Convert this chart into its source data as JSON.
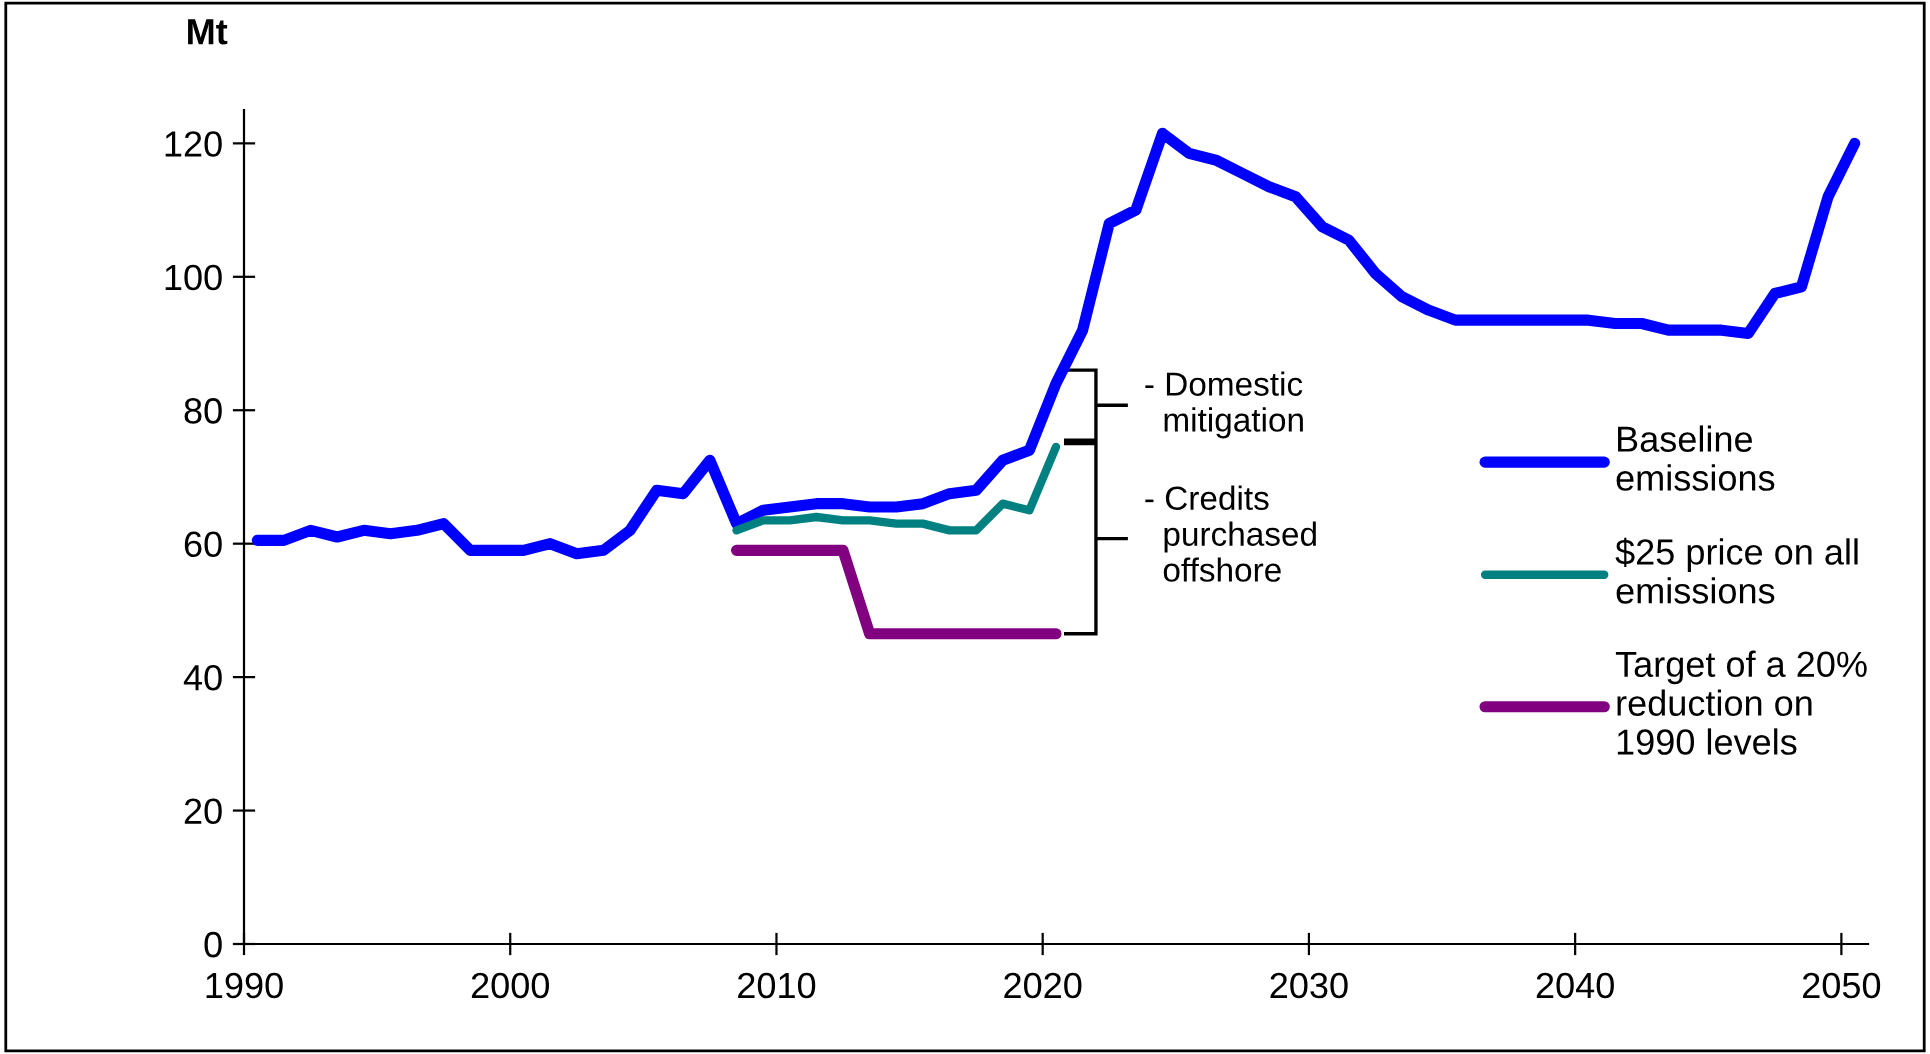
{
  "chart_data": {
    "type": "line",
    "ylabel": "Mt",
    "xlim": [
      1990,
      2051
    ],
    "ylim": [
      0,
      125
    ],
    "xticks": [
      1990,
      2000,
      2010,
      2020,
      2030,
      2040,
      2050
    ],
    "yticks": [
      0,
      20,
      40,
      60,
      80,
      100,
      120
    ],
    "grid": false,
    "legend": "right",
    "marker": "none",
    "line_style": "solid",
    "annotations": [
      "- Domestic\n  mitigation",
      "- Credits\n  purchased\n  offshore"
    ],
    "series": [
      {
        "name": "Baseline\nemissions",
        "color": "#0000ff",
        "x": [
          1990.5,
          1991.5,
          1992.5,
          1993.5,
          1994.5,
          1995.5,
          1996.5,
          1997.5,
          1998.5,
          1999.5,
          2000.5,
          2001.5,
          2002.5,
          2003.5,
          2004.5,
          2005.5,
          2006.5,
          2007.5,
          2008.5,
          2009.5,
          2010.5,
          2011.5,
          2012.5,
          2013.5,
          2014.5,
          2015.5,
          2016.5,
          2017.5,
          2018.5,
          2019.5,
          2020.5,
          2021.5,
          2022.5,
          2023.5,
          2024.5,
          2025.5,
          2026.5,
          2027.5,
          2028.5,
          2029.5,
          2030.5,
          2031.5,
          2032.5,
          2033.5,
          2034.5,
          2035.5,
          2036.5,
          2037.5,
          2038.5,
          2039.5,
          2040.5,
          2041.5,
          2042.5,
          2043.5,
          2044.5,
          2045.5,
          2046.5,
          2047.5,
          2048.5,
          2049.5,
          2050.5
        ],
        "values": [
          60.5,
          60.5,
          62,
          61,
          62,
          61.5,
          62,
          63,
          59,
          59,
          59,
          60,
          58.5,
          59,
          62,
          68,
          67.5,
          72.5,
          63,
          65,
          65.5,
          66,
          66,
          65.5,
          65.5,
          66,
          67.5,
          68,
          72.5,
          74,
          84,
          92,
          108,
          110,
          121.5,
          118.5,
          117.5,
          115.5,
          113.5,
          112,
          107.5,
          105.5,
          100.5,
          97,
          95,
          93.5,
          93.5,
          93.5,
          93.5,
          93.5,
          93.5,
          93,
          93,
          92,
          92,
          92,
          91.5,
          97.5,
          98.5,
          112,
          120
        ]
      },
      {
        "name": "$25 price on all\nemissions",
        "color": "#008080",
        "x": [
          2008.5,
          2009.5,
          2010.5,
          2011.5,
          2012.5,
          2013.5,
          2014.5,
          2015.5,
          2016.5,
          2017.5,
          2018.5,
          2019.5,
          2020.5
        ],
        "values": [
          62,
          63.5,
          63.5,
          64,
          63.5,
          63.5,
          63,
          63,
          62,
          62,
          66,
          65,
          74.5
        ]
      },
      {
        "name": "Target of a 20%\nreduction on\n1990 levels",
        "color": "#800080",
        "x": [
          2008.5,
          2012.5,
          2013.5,
          2020.5
        ],
        "values": [
          59,
          59,
          46.5,
          46.5
        ]
      }
    ]
  }
}
